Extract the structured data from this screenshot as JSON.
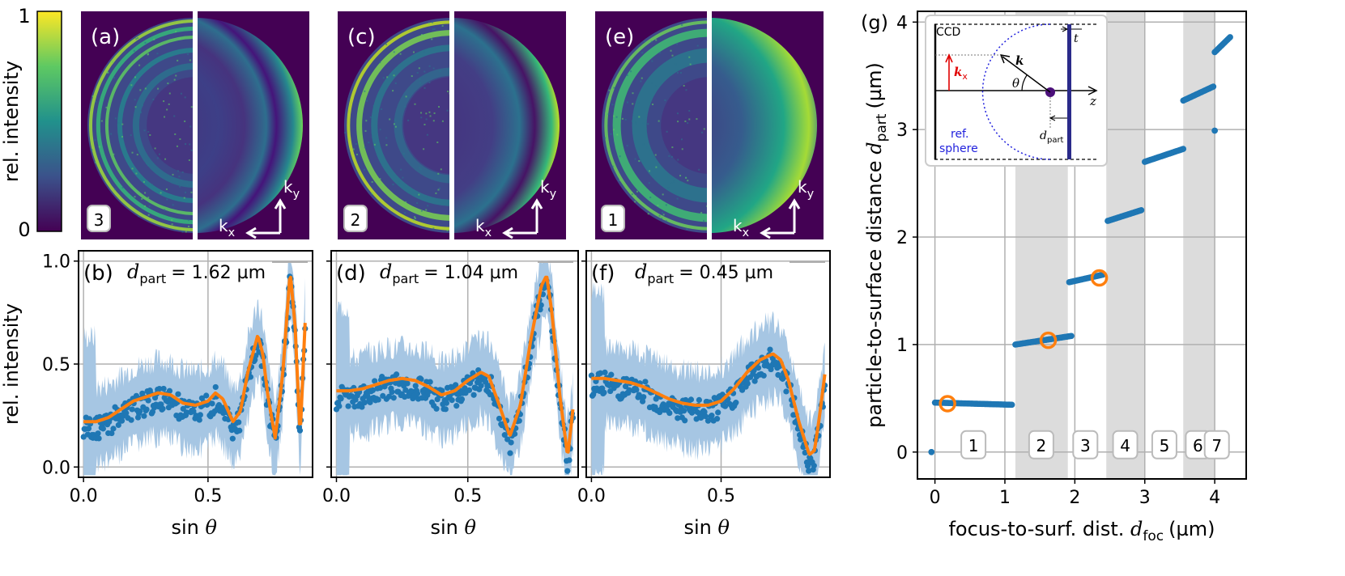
{
  "colorbar": {
    "label": "rel. intensity",
    "max_label": "1",
    "min_label": "0"
  },
  "axis_labels": {
    "ky": "k",
    "ky_sub": "y",
    "kx": "k",
    "kx_sub": "x",
    "rel_intensity": "rel. intensity",
    "sin": "sin",
    "theta": "θ"
  },
  "colors": {
    "scatter": "#1f77b4",
    "band": "#a6c6e3",
    "fit": "#ff7f0e",
    "viridis_low": "#440154",
    "viridis_high": "#fde725",
    "shade": "#dcdcdc"
  },
  "panels_top": [
    {
      "letter": "(a)",
      "badge": "3"
    },
    {
      "letter": "(c)",
      "badge": "2"
    },
    {
      "letter": "(e)",
      "badge": "1"
    }
  ],
  "chart_data": [
    {
      "id": "b",
      "type": "scatter",
      "letter": "(b)",
      "annotation_symbol": "d",
      "annotation_sub": "part",
      "annotation_value": "= 1.62 µm",
      "xlabel": "sin θ",
      "ylabel": "rel. intensity",
      "xlim": [
        -0.02,
        0.92
      ],
      "ylim": [
        -0.05,
        1.05
      ],
      "xticks": [
        0.0,
        0.5
      ],
      "xtick_labels": [
        "0.0",
        "0.5"
      ],
      "yticks": [
        0.0,
        0.5,
        1.0
      ],
      "ytick_labels": [
        "0.0",
        "0.5",
        "1.0"
      ],
      "fit_x": [
        0.0,
        0.05,
        0.1,
        0.15,
        0.2,
        0.25,
        0.3,
        0.35,
        0.4,
        0.45,
        0.5,
        0.53,
        0.56,
        0.6,
        0.63,
        0.66,
        0.7,
        0.72,
        0.74,
        0.77,
        0.8,
        0.83,
        0.85,
        0.87,
        0.89
      ],
      "fit_y": [
        0.22,
        0.22,
        0.24,
        0.28,
        0.32,
        0.34,
        0.36,
        0.35,
        0.31,
        0.3,
        0.32,
        0.36,
        0.33,
        0.22,
        0.27,
        0.46,
        0.64,
        0.55,
        0.35,
        0.14,
        0.45,
        0.95,
        0.68,
        0.15,
        0.7
      ]
    },
    {
      "id": "d",
      "type": "scatter",
      "letter": "(d)",
      "annotation_symbol": "d",
      "annotation_sub": "part",
      "annotation_value": "= 1.04 µm",
      "xlabel": "sin θ",
      "ylabel": "",
      "xlim": [
        -0.02,
        0.92
      ],
      "ylim": [
        -0.05,
        1.05
      ],
      "xticks": [
        0.0,
        0.5
      ],
      "xtick_labels": [
        "0.0",
        "0.5"
      ],
      "yticks": [
        0.0,
        0.5,
        1.0
      ],
      "ytick_labels": [],
      "fit_x": [
        0.0,
        0.05,
        0.1,
        0.15,
        0.2,
        0.25,
        0.3,
        0.35,
        0.4,
        0.45,
        0.5,
        0.55,
        0.58,
        0.62,
        0.66,
        0.7,
        0.74,
        0.78,
        0.8,
        0.82,
        0.85,
        0.88,
        0.9
      ],
      "fit_y": [
        0.37,
        0.37,
        0.38,
        0.4,
        0.42,
        0.43,
        0.42,
        0.39,
        0.35,
        0.37,
        0.42,
        0.46,
        0.44,
        0.3,
        0.15,
        0.3,
        0.62,
        0.88,
        0.93,
        0.75,
        0.35,
        0.05,
        0.28
      ]
    },
    {
      "id": "f",
      "type": "scatter",
      "letter": "(f)",
      "annotation_symbol": "d",
      "annotation_sub": "part",
      "annotation_value": "= 0.45 µm",
      "xlabel": "sin θ",
      "ylabel": "",
      "xlim": [
        -0.02,
        0.92
      ],
      "ylim": [
        -0.05,
        1.05
      ],
      "xticks": [
        0.0,
        0.5
      ],
      "xtick_labels": [
        "0.0",
        "0.5"
      ],
      "yticks": [
        0.0,
        0.5,
        1.0
      ],
      "ytick_labels": [],
      "fit_x": [
        0.0,
        0.05,
        0.1,
        0.15,
        0.2,
        0.25,
        0.3,
        0.35,
        0.4,
        0.45,
        0.5,
        0.55,
        0.6,
        0.65,
        0.7,
        0.73,
        0.76,
        0.8,
        0.84,
        0.86,
        0.88,
        0.9
      ],
      "fit_y": [
        0.43,
        0.43,
        0.42,
        0.41,
        0.39,
        0.36,
        0.33,
        0.31,
        0.3,
        0.3,
        0.32,
        0.38,
        0.46,
        0.52,
        0.55,
        0.52,
        0.42,
        0.22,
        0.06,
        0.08,
        0.25,
        0.45
      ]
    },
    {
      "id": "g",
      "type": "scatter",
      "letter": "(g)",
      "xlabel": "focus-to-surf. dist.",
      "xlabel_symbol": "d",
      "xlabel_sub": "foc",
      "xlabel_unit": "(µm)",
      "ylabel": "particle-to-surface distance",
      "ylabel_symbol": "d",
      "ylabel_sub": "part",
      "ylabel_unit": "(µm)",
      "xlim": [
        -0.25,
        4.45
      ],
      "ylim": [
        -0.25,
        4.1
      ],
      "xticks": [
        0,
        1,
        2,
        3,
        4
      ],
      "xtick_labels": [
        "0",
        "1",
        "2",
        "3",
        "4"
      ],
      "yticks": [
        0,
        1,
        2,
        3,
        4
      ],
      "ytick_labels": [
        "0",
        "1",
        "2",
        "3",
        "4"
      ],
      "shaded_regions": [
        [
          1.15,
          1.9
        ],
        [
          2.45,
          3.0
        ],
        [
          3.55,
          4.0
        ]
      ],
      "segments": [
        {
          "x": [
            -0.05,
            -0.05
          ],
          "y": [
            0.0,
            0.0
          ]
        },
        {
          "x": [
            0.0,
            1.1
          ],
          "y": [
            0.46,
            0.44
          ]
        },
        {
          "x": [
            1.15,
            1.95
          ],
          "y": [
            1.0,
            1.08
          ]
        },
        {
          "x": [
            1.92,
            2.4
          ],
          "y": [
            1.58,
            1.65
          ]
        },
        {
          "x": [
            2.47,
            2.95
          ],
          "y": [
            2.15,
            2.25
          ]
        },
        {
          "x": [
            3.0,
            3.55
          ],
          "y": [
            2.7,
            2.82
          ]
        },
        {
          "x": [
            3.55,
            3.98
          ],
          "y": [
            3.27,
            3.4
          ]
        },
        {
          "x": [
            4.0,
            4.0
          ],
          "y": [
            2.99,
            2.99
          ]
        },
        {
          "x": [
            4.0,
            4.22
          ],
          "y": [
            3.72,
            3.86
          ]
        }
      ],
      "highlighted": [
        {
          "x": 0.18,
          "y": 0.45
        },
        {
          "x": 1.62,
          "y": 1.04
        },
        {
          "x": 2.35,
          "y": 1.62
        }
      ],
      "region_labels": [
        {
          "label": "1",
          "x": 0.55
        },
        {
          "label": "2",
          "x": 1.52
        },
        {
          "label": "3",
          "x": 2.15
        },
        {
          "label": "4",
          "x": 2.72
        },
        {
          "label": "5",
          "x": 3.28
        },
        {
          "label": "6",
          "x": 3.76
        },
        {
          "label": "7",
          "x": 4.03
        }
      ]
    }
  ],
  "inset": {
    "ccd": "CCD",
    "t": "t",
    "k": "k",
    "theta": "θ",
    "z": "z",
    "kx": "k",
    "kx_sub": "x",
    "ref": "ref.",
    "sphere": "sphere",
    "d": "d",
    "d_sub": "part"
  }
}
